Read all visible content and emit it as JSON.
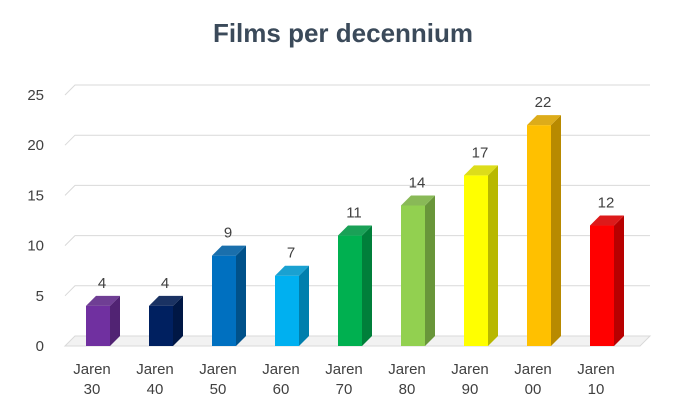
{
  "chart_data": {
    "type": "bar",
    "title": "Films per decennium",
    "xlabel": "",
    "ylabel": "",
    "ylim": [
      0,
      25
    ],
    "yticks": [
      0,
      5,
      10,
      15,
      20,
      25
    ],
    "grid": true,
    "categories": [
      [
        "Jaren",
        "30"
      ],
      [
        "Jaren",
        "40"
      ],
      [
        "Jaren",
        "50"
      ],
      [
        "Jaren",
        "60"
      ],
      [
        "Jaren",
        "70"
      ],
      [
        "Jaren",
        "80"
      ],
      [
        "Jaren",
        "90"
      ],
      [
        "Jaren",
        "00"
      ],
      [
        "Jaren",
        "10"
      ]
    ],
    "values": [
      4,
      4,
      9,
      7,
      11,
      14,
      17,
      22,
      12
    ],
    "colors": [
      "#7030a0",
      "#002060",
      "#0070c0",
      "#00b0f0",
      "#00b050",
      "#92d050",
      "#ffff00",
      "#ffc000",
      "#ff0000"
    ]
  }
}
